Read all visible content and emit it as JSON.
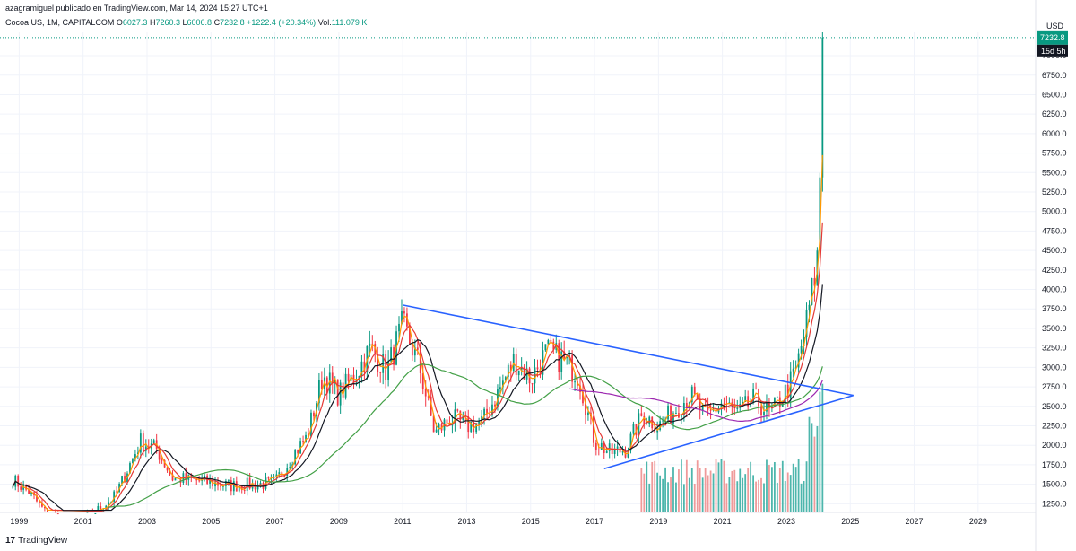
{
  "header": {
    "publisher_line": "azagramiguel publicado en TradingView.com, Mar 14, 2024 15:27 UTC+1",
    "symbol": "Cocoa US, 1M, CAPITALCOM",
    "open_label": "O",
    "open_value": "6027.3",
    "high_label": "H",
    "high_value": "7260.3",
    "low_label": "L",
    "low_value": "6006.8",
    "close_label": "C",
    "close_value": "7232.8",
    "change": "+1222.4 (+20.34%)",
    "vol_label": "Vol.",
    "vol_value": "111.079 K"
  },
  "price_axis": {
    "currency": "USD",
    "countdown": "15d 5h",
    "ticks": [
      "7000.0",
      "6750.0",
      "6500.0",
      "6250.0",
      "6000.0",
      "5750.0",
      "5500.0",
      "5250.0",
      "5000.0",
      "4750.0",
      "4500.0",
      "4250.0",
      "4000.0",
      "3750.0",
      "3500.0",
      "3250.0",
      "3000.0",
      "2750.0",
      "2500.0",
      "2250.0",
      "2000.0",
      "1750.0",
      "1500.0",
      "1250.0"
    ]
  },
  "time_axis": {
    "ticks": [
      "1999",
      "2001",
      "2003",
      "2005",
      "2007",
      "2009",
      "2011",
      "2013",
      "2015",
      "2017",
      "2019",
      "2021",
      "2023",
      "2025",
      "2027",
      "2029"
    ]
  },
  "footer": {
    "logo_text": "TradingView"
  },
  "colors": {
    "up": "#089981",
    "down": "#f23645",
    "trendline": "#2962ff",
    "ma_red": "#e53935",
    "ma_orange": "#ff9800",
    "ma_black": "#131722",
    "ma_green": "#43a047",
    "ma_purple": "#9c27b0"
  },
  "chart_data": {
    "type": "candlestick",
    "title": "Cocoa US, 1M, CAPITALCOM",
    "ylim": [
      1150,
      7300
    ],
    "xlim": [
      1998.4,
      2030.8
    ],
    "x_ticks": [
      1999,
      2001,
      2003,
      2005,
      2007,
      2009,
      2011,
      2013,
      2015,
      2017,
      2019,
      2021,
      2023,
      2025,
      2027,
      2029
    ],
    "y_ticks": [
      1250,
      1500,
      1750,
      2000,
      2250,
      2500,
      2750,
      3000,
      3250,
      3500,
      3750,
      4000,
      4250,
      4500,
      4750,
      5000,
      5250,
      5500,
      5750,
      6000,
      6250,
      6500,
      6750,
      7000
    ],
    "price_keypoints": [
      [
        1998.8,
        1560
      ],
      [
        1999.3,
        1400
      ],
      [
        1999.8,
        1150
      ],
      [
        2000.8,
        1000
      ],
      [
        2001.0,
        1050
      ],
      [
        2001.5,
        1180
      ],
      [
        2002.0,
        1350
      ],
      [
        2002.8,
        2050
      ],
      [
        2003.3,
        1950
      ],
      [
        2003.8,
        1580
      ],
      [
        2004.5,
        1550
      ],
      [
        2005.0,
        1520
      ],
      [
        2005.6,
        1480
      ],
      [
        2006.5,
        1500
      ],
      [
        2007.0,
        1520
      ],
      [
        2007.6,
        1900
      ],
      [
        2008.0,
        2100
      ],
      [
        2008.5,
        2900
      ],
      [
        2009.0,
        2650
      ],
      [
        2009.5,
        2900
      ],
      [
        2010.0,
        3250
      ],
      [
        2010.5,
        2950
      ],
      [
        2011.0,
        3550
      ],
      [
        2011.5,
        3050
      ],
      [
        2012.0,
        2150
      ],
      [
        2012.5,
        2350
      ],
      [
        2013.0,
        2250
      ],
      [
        2013.5,
        2300
      ],
      [
        2014.0,
        2700
      ],
      [
        2014.5,
        3100
      ],
      [
        2015.0,
        2850
      ],
      [
        2015.5,
        3200
      ],
      [
        2016.0,
        3100
      ],
      [
        2016.5,
        2900
      ],
      [
        2017.0,
        2050
      ],
      [
        2017.5,
        1900
      ],
      [
        2018.0,
        1950
      ],
      [
        2018.5,
        2400
      ],
      [
        2019.0,
        2250
      ],
      [
        2019.5,
        2450
      ],
      [
        2020.0,
        2650
      ],
      [
        2020.5,
        2350
      ],
      [
        2021.0,
        2550
      ],
      [
        2021.5,
        2400
      ],
      [
        2022.0,
        2600
      ],
      [
        2022.5,
        2400
      ],
      [
        2023.0,
        2700
      ],
      [
        2023.3,
        2950
      ],
      [
        2023.6,
        3500
      ],
      [
        2023.9,
        4200
      ],
      [
        2024.0,
        4500
      ],
      [
        2024.08,
        6000
      ],
      [
        2024.17,
        7232
      ]
    ],
    "resistance_line": {
      "x": [
        2011.0,
        2025.1
      ],
      "y": [
        3800,
        2640
      ]
    },
    "support_line": {
      "x": [
        2017.3,
        2025.1
      ],
      "y": [
        1700,
        2640
      ]
    },
    "volume_start": 2018.4,
    "last_close": 7232.8
  }
}
